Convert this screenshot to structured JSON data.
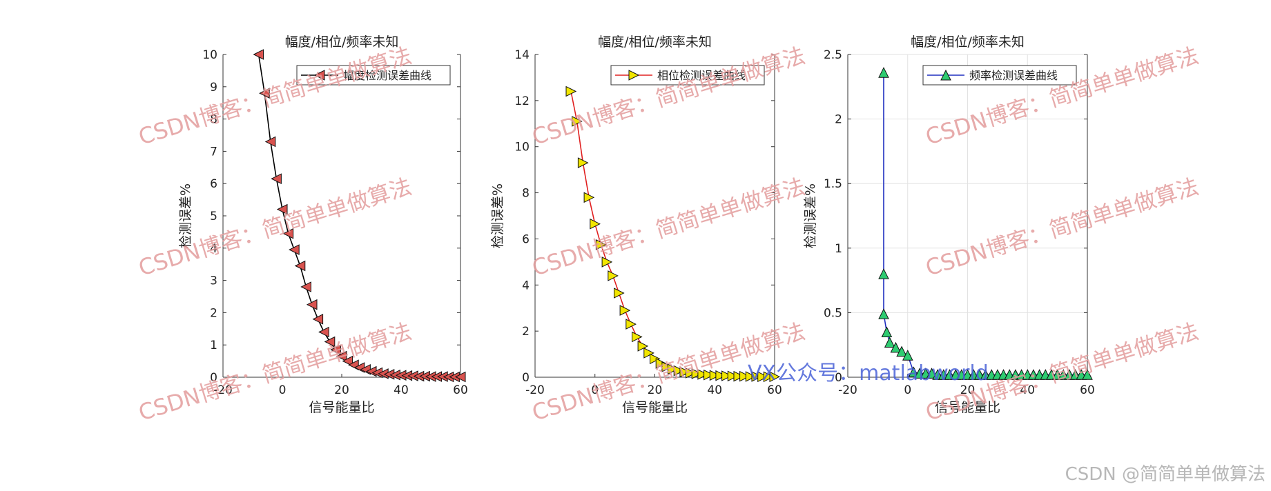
{
  "watermark_text": "CSDN博客：简简单单做算法",
  "vx_text": "VX公众号：matlabworld",
  "footer_text": "CSDN @简简单单做算法",
  "chart_data": [
    {
      "type": "line",
      "title": "幅度/相位/频率未知",
      "xlabel": "信号能量比",
      "ylabel": "检测误差%",
      "xlim": [
        -20,
        60
      ],
      "ylim": [
        0,
        10
      ],
      "xticks": [
        "-20",
        "0",
        "20",
        "40",
        "60"
      ],
      "yticks": [
        "0",
        "1",
        "2",
        "3",
        "4",
        "5",
        "6",
        "7",
        "8",
        "9",
        "10"
      ],
      "grid": false,
      "legend_position": "top-right",
      "marker": "triangle-left",
      "series": [
        {
          "name": "幅度检测误差曲线",
          "line_color": "#000000",
          "marker_color": "#d9534f",
          "x": [
            -8,
            -6,
            -4,
            -2,
            0,
            2,
            4,
            6,
            8,
            10,
            12,
            14,
            16,
            18,
            20,
            22,
            24,
            26,
            28,
            30,
            32,
            34,
            36,
            38,
            40,
            42,
            44,
            46,
            48,
            50,
            52,
            54,
            56,
            58,
            60
          ],
          "y": [
            10.0,
            8.8,
            7.3,
            6.15,
            5.2,
            4.45,
            3.95,
            3.45,
            2.8,
            2.25,
            1.8,
            1.4,
            1.1,
            0.85,
            0.65,
            0.5,
            0.38,
            0.3,
            0.24,
            0.18,
            0.14,
            0.11,
            0.09,
            0.07,
            0.06,
            0.05,
            0.04,
            0.03,
            0.03,
            0.02,
            0.02,
            0.02,
            0.01,
            0.01,
            0.01
          ]
        }
      ]
    },
    {
      "type": "line",
      "title": "幅度/相位/频率未知",
      "xlabel": "信号能量比",
      "ylabel": "检测误差%",
      "xlim": [
        -20,
        60
      ],
      "ylim": [
        0,
        14
      ],
      "xticks": [
        "-20",
        "0",
        "20",
        "40",
        "60"
      ],
      "yticks": [
        "0",
        "2",
        "4",
        "6",
        "8",
        "10",
        "12",
        "14"
      ],
      "grid": false,
      "legend_position": "top-right",
      "marker": "triangle-right",
      "series": [
        {
          "name": "相位检测误差曲线",
          "line_color": "#e02020",
          "marker_color": "#f2e600",
          "x": [
            -8,
            -6,
            -4,
            -2,
            0,
            2,
            4,
            6,
            8,
            10,
            12,
            14,
            16,
            18,
            20,
            22,
            24,
            26,
            28,
            30,
            32,
            34,
            36,
            38,
            40,
            42,
            44,
            46,
            48,
            50,
            52,
            54,
            56,
            58,
            60
          ],
          "y": [
            12.4,
            11.1,
            9.3,
            7.8,
            6.65,
            5.75,
            5.0,
            4.4,
            3.65,
            2.9,
            2.3,
            1.75,
            1.35,
            1.05,
            0.8,
            0.6,
            0.45,
            0.35,
            0.28,
            0.22,
            0.18,
            0.15,
            0.12,
            0.1,
            0.08,
            0.07,
            0.06,
            0.05,
            0.04,
            0.04,
            0.03,
            0.03,
            0.02,
            0.02,
            0.02
          ]
        }
      ]
    },
    {
      "type": "line",
      "title": "幅度/相位/频率未知",
      "xlabel": "信号能量比",
      "ylabel": "检测误差%",
      "xlim": [
        -20,
        60
      ],
      "ylim": [
        0,
        2.5
      ],
      "xticks": [
        "-20",
        "0",
        "20",
        "40",
        "60"
      ],
      "yticks": [
        "0",
        "0.5",
        "1",
        "1.5",
        "2",
        "2.5"
      ],
      "grid": true,
      "legend_position": "top-right",
      "marker": "triangle-up",
      "series": [
        {
          "name": "频率检测误差曲线",
          "line_color": "#1f2fbf",
          "marker_color": "#2ecc71",
          "x": [
            -8,
            -8,
            -8,
            -7,
            -6,
            -4,
            -2,
            0,
            2,
            4,
            6,
            8,
            10,
            12,
            14,
            16,
            18,
            20,
            22,
            24,
            26,
            28,
            30,
            32,
            34,
            36,
            38,
            40,
            42,
            44,
            46,
            48,
            50,
            52,
            54,
            56,
            58,
            60
          ],
          "y": [
            2.36,
            0.8,
            0.49,
            0.35,
            0.27,
            0.23,
            0.2,
            0.17,
            0.04,
            0.03,
            0.03,
            0.03,
            0.02,
            0.02,
            0.02,
            0.02,
            0.02,
            0.02,
            0.02,
            0.02,
            0.02,
            0.02,
            0.02,
            0.02,
            0.02,
            0.02,
            0.02,
            0.02,
            0.02,
            0.02,
            0.02,
            0.02,
            0.02,
            0.02,
            0.02,
            0.02,
            0.02,
            0.02
          ]
        }
      ]
    }
  ]
}
